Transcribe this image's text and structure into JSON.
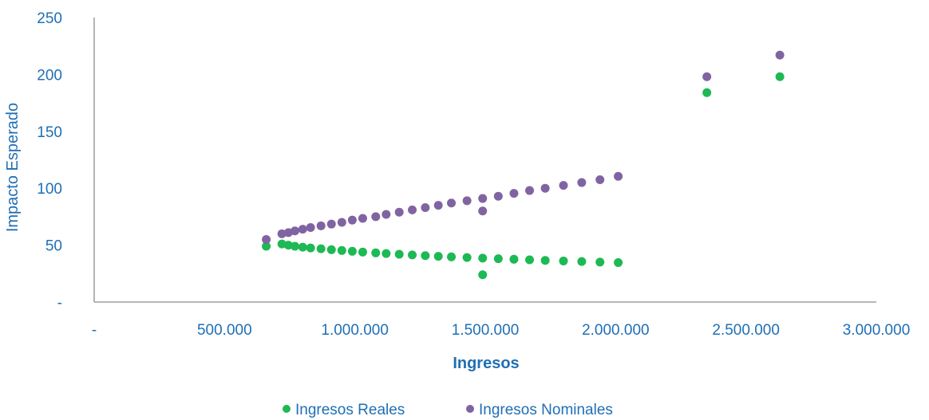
{
  "chart_data": {
    "type": "scatter",
    "xlabel": "Ingresos",
    "ylabel": "Impacto Esperado",
    "xlim": [
      0,
      3000000
    ],
    "ylim": [
      0,
      250
    ],
    "xticks": [
      0,
      500000,
      1000000,
      1500000,
      2000000,
      2500000,
      3000000
    ],
    "xtick_labels": [
      "-",
      "500.000",
      "1.000.000",
      "1.500.000",
      "2.000.000",
      "2.500.000",
      "3.000.000"
    ],
    "yticks": [
      0,
      50,
      100,
      150,
      200,
      250
    ],
    "ytick_labels": [
      "-",
      "50",
      "100",
      "150",
      "200",
      "250"
    ],
    "grid": false,
    "legend": "bottom",
    "series": [
      {
        "name": "Ingresos Reales",
        "color": "#1db954",
        "points": [
          [
            660000,
            49
          ],
          [
            720000,
            51
          ],
          [
            745000,
            50
          ],
          [
            770000,
            49
          ],
          [
            800000,
            48.2
          ],
          [
            830000,
            47.5
          ],
          [
            870000,
            46.8
          ],
          [
            910000,
            46
          ],
          [
            950000,
            45.3
          ],
          [
            990000,
            44.6
          ],
          [
            1030000,
            43.9
          ],
          [
            1080000,
            43.2
          ],
          [
            1120000,
            42.6
          ],
          [
            1170000,
            42
          ],
          [
            1220000,
            41.4
          ],
          [
            1270000,
            40.8
          ],
          [
            1320000,
            40.2
          ],
          [
            1370000,
            39.7
          ],
          [
            1430000,
            39.1
          ],
          [
            1490000,
            38.6
          ],
          [
            1550000,
            38.1
          ],
          [
            1610000,
            37.6
          ],
          [
            1670000,
            37.1
          ],
          [
            1730000,
            36.6
          ],
          [
            1800000,
            36.1
          ],
          [
            1870000,
            35.6
          ],
          [
            1940000,
            35.1
          ],
          [
            2010000,
            34.7
          ],
          [
            1490000,
            24
          ],
          [
            2350000,
            184
          ],
          [
            2630000,
            198
          ]
        ]
      },
      {
        "name": "Ingresos Nominales",
        "color": "#8064a2",
        "points": [
          [
            660000,
            55
          ],
          [
            720000,
            60
          ],
          [
            745000,
            61
          ],
          [
            770000,
            62.5
          ],
          [
            800000,
            64
          ],
          [
            830000,
            65.5
          ],
          [
            870000,
            67
          ],
          [
            910000,
            68.5
          ],
          [
            950000,
            70
          ],
          [
            990000,
            72
          ],
          [
            1030000,
            73.5
          ],
          [
            1080000,
            75
          ],
          [
            1120000,
            77
          ],
          [
            1170000,
            79
          ],
          [
            1220000,
            81
          ],
          [
            1270000,
            83
          ],
          [
            1320000,
            85
          ],
          [
            1370000,
            87
          ],
          [
            1430000,
            89
          ],
          [
            1490000,
            91
          ],
          [
            1550000,
            93
          ],
          [
            1610000,
            95.5
          ],
          [
            1670000,
            98
          ],
          [
            1730000,
            100
          ],
          [
            1800000,
            102.5
          ],
          [
            1870000,
            105
          ],
          [
            1940000,
            107.5
          ],
          [
            2010000,
            110.5
          ],
          [
            1490000,
            80
          ],
          [
            2350000,
            198
          ],
          [
            2630000,
            217
          ]
        ]
      }
    ]
  }
}
